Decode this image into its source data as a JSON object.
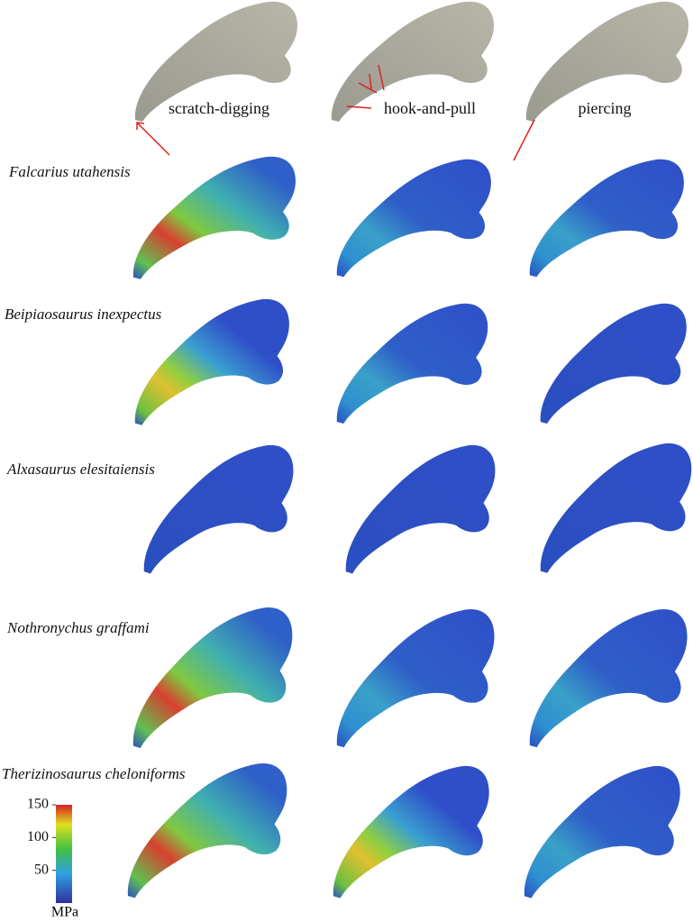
{
  "columns": [
    "scratch-digging",
    "hook-and-pull",
    "piercing"
  ],
  "species": [
    "Falcarius utahensis",
    "Beipiaosaurus inexpectus",
    "Alxasaurus elesitaiensis",
    "Nothronychus graffami",
    "Therizinosaurus cheloniforms"
  ],
  "colorbar": {
    "lim": [
      0,
      150
    ],
    "ticks": [
      50,
      100,
      150
    ],
    "unit": "MPa"
  }
}
